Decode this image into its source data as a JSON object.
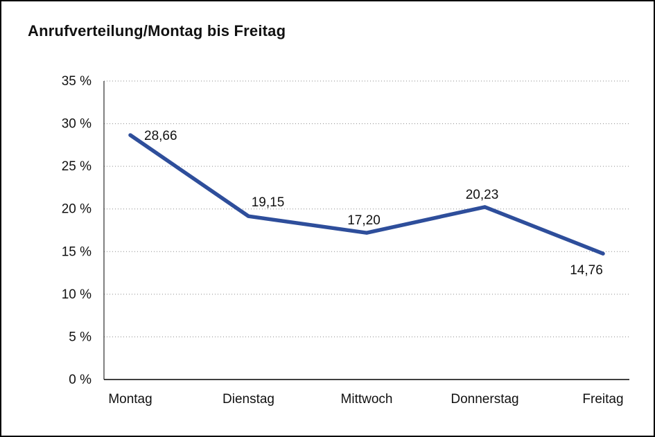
{
  "title": "Anrufverteilung/Montag bis Freitag",
  "chart_data": {
    "type": "line",
    "title": "Anrufverteilung/Montag bis Freitag",
    "categories": [
      "Montag",
      "Dienstag",
      "Mittwoch",
      "Donnerstag",
      "Freitag"
    ],
    "values": [
      28.66,
      19.15,
      17.2,
      20.23,
      14.76
    ],
    "value_labels": [
      "28,66",
      "19,15",
      "17,20",
      "20,23",
      "14,76"
    ],
    "label_positions": [
      "right",
      "above-right",
      "above",
      "above",
      "below"
    ],
    "ylim": [
      0,
      35
    ],
    "ytick_step": 5,
    "yticks": [
      "0 %",
      "5 %",
      "10 %",
      "15 %",
      "20 %",
      "25 %",
      "30 %",
      "35 %"
    ],
    "xlabel": "",
    "ylabel": "",
    "grid": "horizontal-dotted",
    "legend": "none",
    "line_color": "#2e4e9b"
  },
  "colors": {
    "line": "#2e4e9b",
    "grid": "#8a8a8a",
    "axis": "#000000",
    "text": "#111111",
    "background": "#ffffff",
    "border": "#000000"
  }
}
